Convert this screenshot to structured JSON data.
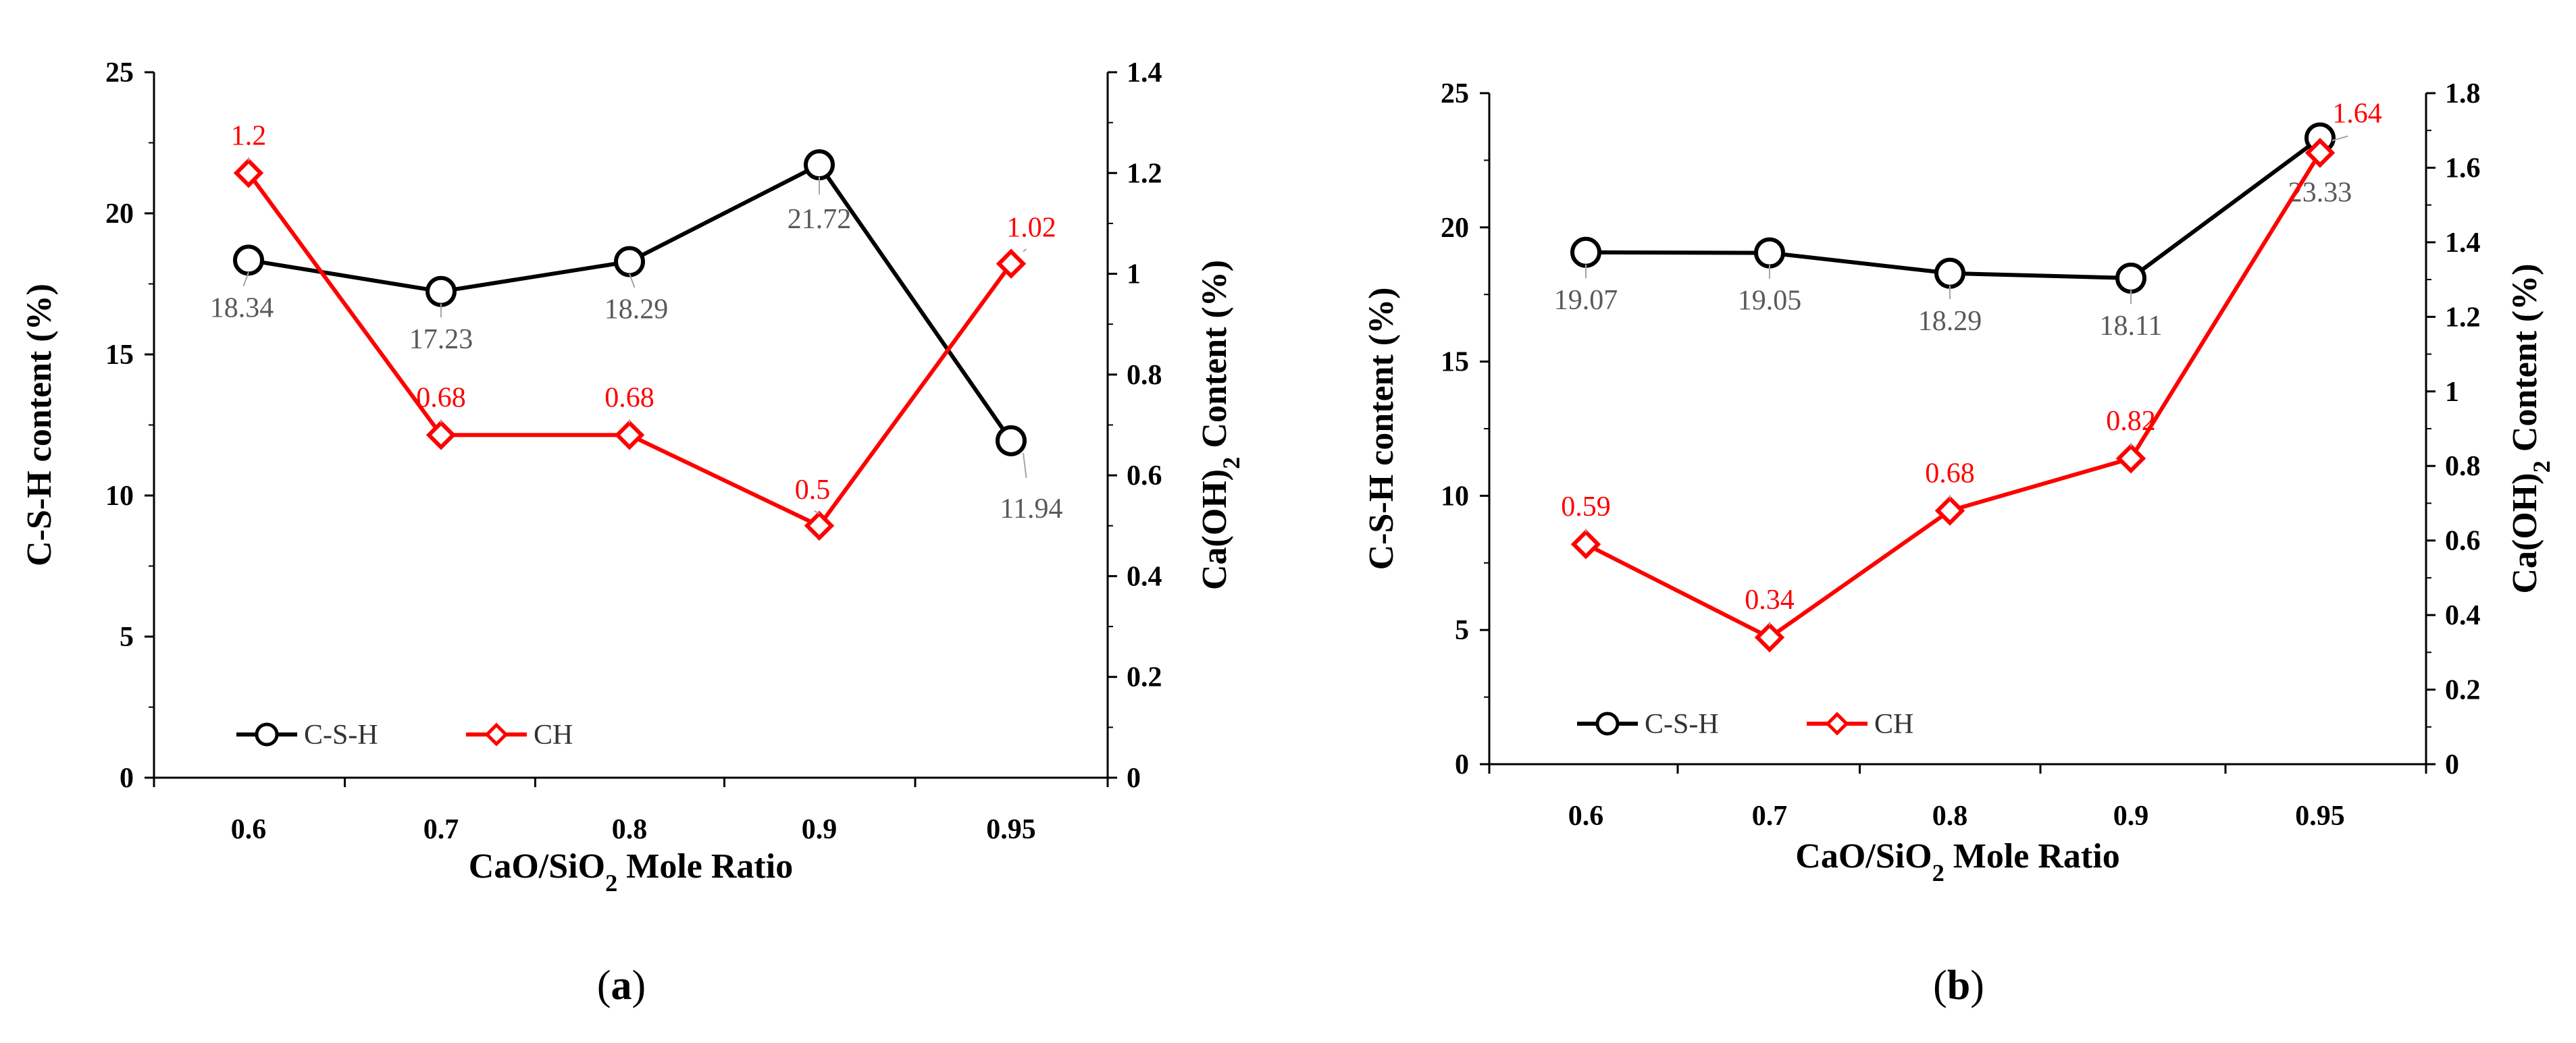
{
  "colors": {
    "csh": "#000000",
    "ch": "#ff0000",
    "csh_label": "#595959",
    "ch_label": "#ff0000",
    "leader": "#a6a6a6"
  },
  "chart_data": [
    {
      "panel": "a",
      "panel_label": "a",
      "type": "line",
      "categories": [
        "0.6",
        "0.7",
        "0.8",
        "0.9",
        "0.95"
      ],
      "xlabel": "CaO/SiO2 Mole Ratio",
      "ylabel": "C-S-H content (%)",
      "y2label": "Ca(OH)2 Content (%)",
      "ylim": [
        0,
        25
      ],
      "yticks": [
        "0",
        "5",
        "10",
        "15",
        "20",
        "25"
      ],
      "y2lim": [
        0,
        1.4
      ],
      "y2ticks": [
        "0",
        "0.2",
        "0.4",
        "0.6",
        "0.8",
        "1",
        "1.2",
        "1.4"
      ],
      "legend_position": "bottom-left",
      "series": [
        {
          "name": "C-S-H",
          "axis": "left",
          "marker": "circle",
          "values": [
            18.34,
            17.23,
            18.29,
            21.72,
            11.94
          ],
          "labels": [
            "18.34",
            "17.23",
            "18.29",
            "21.72",
            "11.94"
          ]
        },
        {
          "name": "CH",
          "axis": "right",
          "marker": "diamond",
          "values": [
            1.2,
            0.68,
            0.68,
            0.5,
            1.02
          ],
          "labels": [
            "1.2",
            "0.68",
            "0.68",
            "0.5",
            "1.02"
          ]
        }
      ]
    },
    {
      "panel": "b",
      "panel_label": "b",
      "type": "line",
      "categories": [
        "0.6",
        "0.7",
        "0.8",
        "0.9",
        "0.95"
      ],
      "xlabel": "CaO/SiO2 Mole Ratio",
      "ylabel": "C-S-H content (%)",
      "y2label": "Ca(OH)2 Content (%)",
      "ylim": [
        0,
        25
      ],
      "yticks": [
        "0",
        "5",
        "10",
        "15",
        "20",
        "25"
      ],
      "y2lim": [
        0,
        1.8
      ],
      "y2ticks": [
        "0",
        "0.2",
        "0.4",
        "0.6",
        "0.8",
        "1",
        "1.2",
        "1.4",
        "1.6",
        "1.8"
      ],
      "legend_position": "bottom-left",
      "series": [
        {
          "name": "C-S-H",
          "axis": "left",
          "marker": "circle",
          "values": [
            19.07,
            19.05,
            18.29,
            18.11,
            23.33
          ],
          "labels": [
            "19.07",
            "19.05",
            "18.29",
            "18.11",
            "23.33"
          ]
        },
        {
          "name": "CH",
          "axis": "right",
          "marker": "diamond",
          "values": [
            0.59,
            0.34,
            0.68,
            0.82,
            1.64
          ],
          "labels": [
            "0.59",
            "0.34",
            "0.68",
            "0.82",
            "1.64"
          ]
        }
      ]
    }
  ]
}
